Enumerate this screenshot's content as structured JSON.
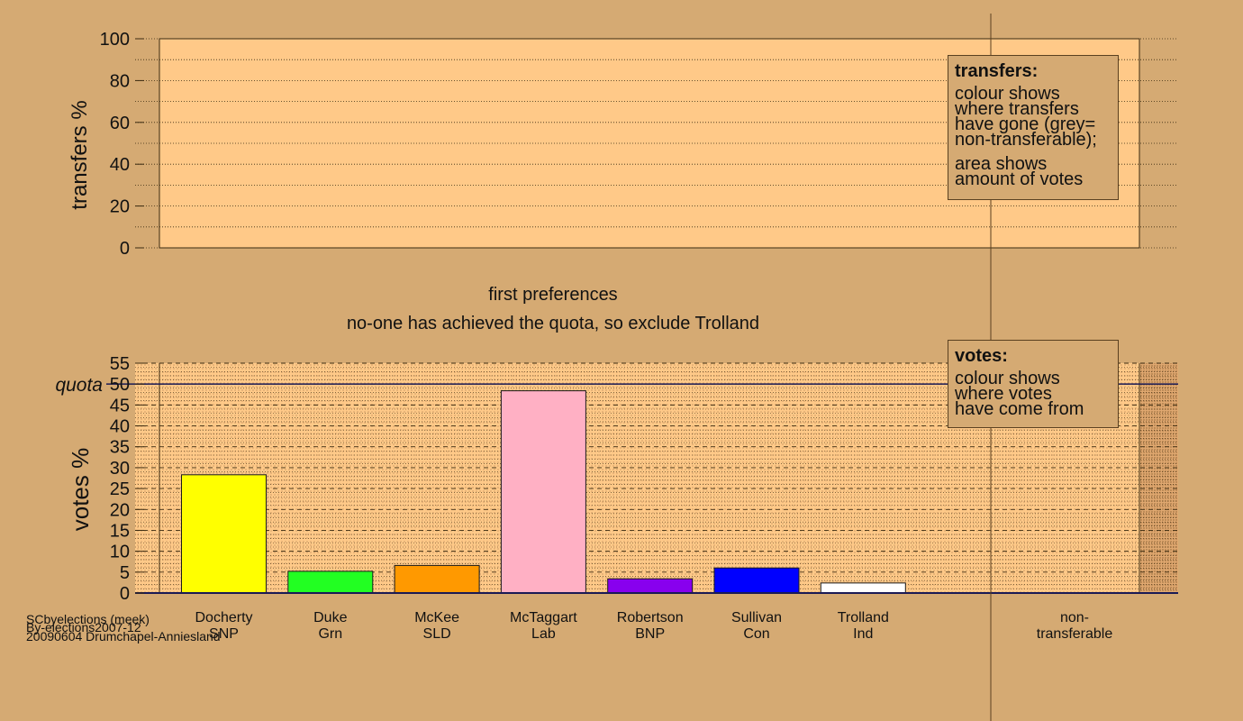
{
  "colors": {
    "background": "#d5aa73",
    "panel": "#ffc988",
    "docherty": "#ffff00",
    "duke": "#22ff22",
    "mckee": "#ff9900",
    "mctaggart": "#ffb0c4",
    "robertson": "#8800ee",
    "sullivan": "#0000ff",
    "trolland": "#ffffff"
  },
  "labels": {
    "stage": "first preferences",
    "action": "no-one has achieved the quota, so exclude Trolland",
    "quota": "quota"
  },
  "legend_transfers": {
    "title": "transfers:",
    "lines": [
      "colour shows",
      "where transfers",
      "have gone (grey=",
      "non-transferable);"
    ],
    "lines2": [
      "area shows",
      "amount of votes"
    ]
  },
  "legend_votes": {
    "title": "votes:",
    "lines": [
      "colour shows",
      "where votes",
      "have come from"
    ]
  },
  "footer": {
    "line1": "SCbyelections (meek)",
    "line2": "By-elections2007-12",
    "line3": "20090604 Drumchapel-Anniesland"
  },
  "chart_data": [
    {
      "type": "bar",
      "id": "transfers",
      "ylabel": "transfers %",
      "ylim": [
        0,
        100
      ],
      "yticks": [
        0,
        20,
        40,
        60,
        80,
        100
      ],
      "categories": [],
      "values": []
    },
    {
      "type": "bar",
      "id": "votes",
      "ylabel": "votes %",
      "ylim": [
        0,
        55
      ],
      "yticks": [
        0,
        5,
        10,
        15,
        20,
        25,
        30,
        35,
        40,
        45,
        50,
        55
      ],
      "quota": 50,
      "categories": [
        [
          "Docherty",
          "SNP"
        ],
        [
          "Duke",
          "Grn"
        ],
        [
          "McKee",
          "SLD"
        ],
        [
          "McTaggart",
          "Lab"
        ],
        [
          "Robertson",
          "BNP"
        ],
        [
          "Sullivan",
          "Con"
        ],
        [
          "Trolland",
          "Ind"
        ],
        [
          "non-",
          "transferable"
        ]
      ],
      "values": [
        28.3,
        5.2,
        6.6,
        48.4,
        3.4,
        6.0,
        2.4,
        0
      ],
      "series_colors": [
        "#ffff00",
        "#22ff22",
        "#ff9900",
        "#ffb0c4",
        "#8800ee",
        "#0000ff",
        "#ffffff",
        "#999999"
      ]
    }
  ]
}
